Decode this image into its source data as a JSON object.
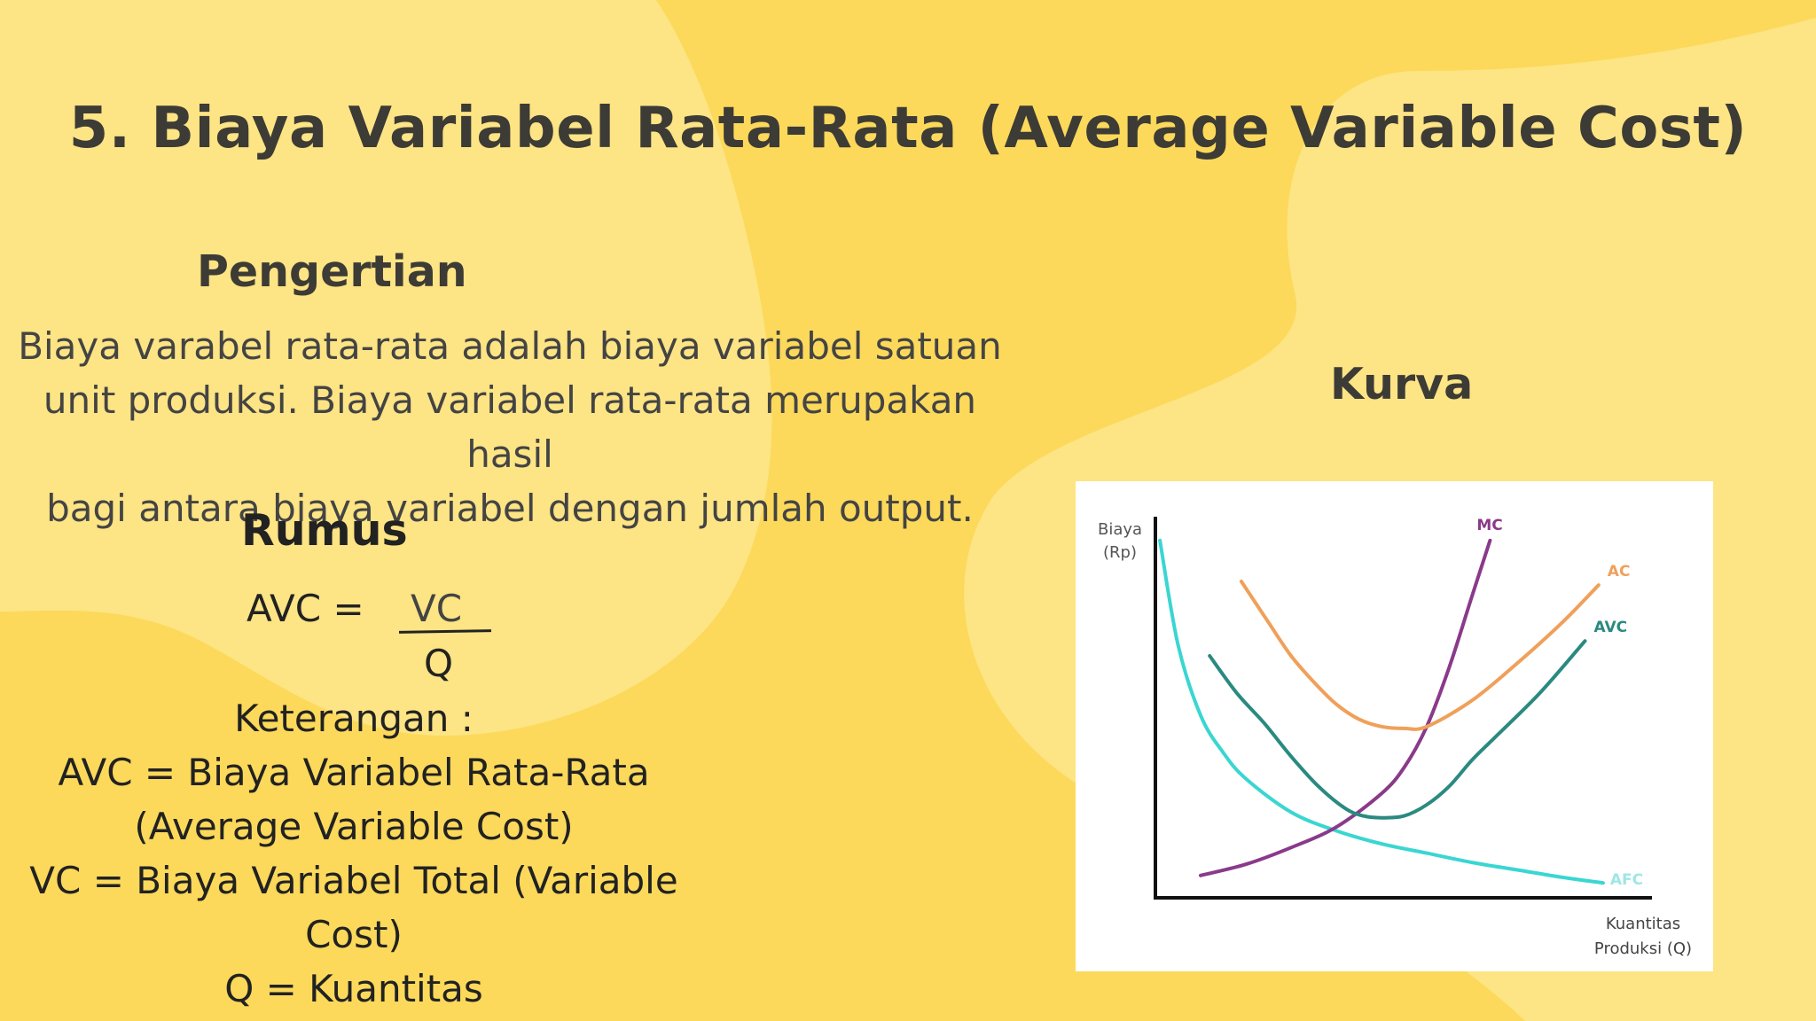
{
  "slide": {
    "title": "5. Biaya Variabel Rata-Rata (Average Variable Cost)",
    "colors": {
      "background": "#fcd95a",
      "blob": "#fde484",
      "text": "#3d3b35"
    }
  },
  "definition": {
    "heading": "Pengertian",
    "lines": [
      "Biaya varabel rata-rata adalah biaya variabel satuan",
      "unit produksi. Biaya variabel rata-rata merupakan hasil",
      "bagi antara biaya variabel dengan jumlah output."
    ]
  },
  "formula": {
    "heading": "Rumus",
    "lhs": "AVC =",
    "numerator": "VC",
    "denominator": "Q"
  },
  "legend_notes": {
    "heading": "Keterangan :",
    "lines": [
      "AVC = Biaya Variabel Rata-Rata",
      "(Average Variable Cost)",
      "VC = Biaya Variabel Total (Variable",
      "Cost)",
      "Q = Kuantitas"
    ]
  },
  "curve_section": {
    "heading": "Kurva"
  },
  "chart_data": {
    "type": "line",
    "ylabel": [
      "Biaya",
      "(Rp)"
    ],
    "xlabel": [
      "Kuantitas",
      "Produksi (Q)"
    ],
    "xlim": [
      0,
      10
    ],
    "ylim": [
      0,
      10
    ],
    "grid": false,
    "series": [
      {
        "name": "AFC",
        "color": "#3ad6d2",
        "x": [
          0.1,
          0.5,
          1,
          1.5,
          2,
          3,
          4,
          5,
          6,
          7,
          8,
          9,
          9.9
        ],
        "y": [
          9.6,
          6.8,
          4.9,
          3.9,
          3.2,
          2.3,
          1.8,
          1.45,
          1.2,
          0.95,
          0.75,
          0.55,
          0.4
        ]
      },
      {
        "name": "MC",
        "color": "#8a3a8a",
        "x": [
          1.0,
          2,
          3,
          4,
          5,
          5.5,
          6,
          6.5,
          7,
          7.4
        ],
        "y": [
          0.6,
          0.9,
          1.35,
          1.9,
          2.8,
          3.5,
          4.6,
          6.2,
          8.1,
          9.6
        ]
      },
      {
        "name": "AC",
        "color": "#f0a05a",
        "x": [
          1.9,
          2.5,
          3,
          3.5,
          4,
          4.5,
          5,
          5.5,
          6,
          7,
          8,
          9,
          9.8
        ],
        "y": [
          8.5,
          7.4,
          6.5,
          5.8,
          5.2,
          4.8,
          4.6,
          4.55,
          4.6,
          5.3,
          6.3,
          7.4,
          8.4
        ]
      },
      {
        "name": "AVC",
        "color": "#2a8a80",
        "x": [
          1.2,
          1.8,
          2.4,
          3,
          3.6,
          4.2,
          4.6,
          5,
          5.5,
          6,
          6.5,
          7,
          7.5,
          8.5,
          9.5
        ],
        "y": [
          6.5,
          5.5,
          4.7,
          3.8,
          3.0,
          2.4,
          2.2,
          2.15,
          2.2,
          2.5,
          3.0,
          3.7,
          4.3,
          5.5,
          6.9
        ]
      }
    ]
  }
}
